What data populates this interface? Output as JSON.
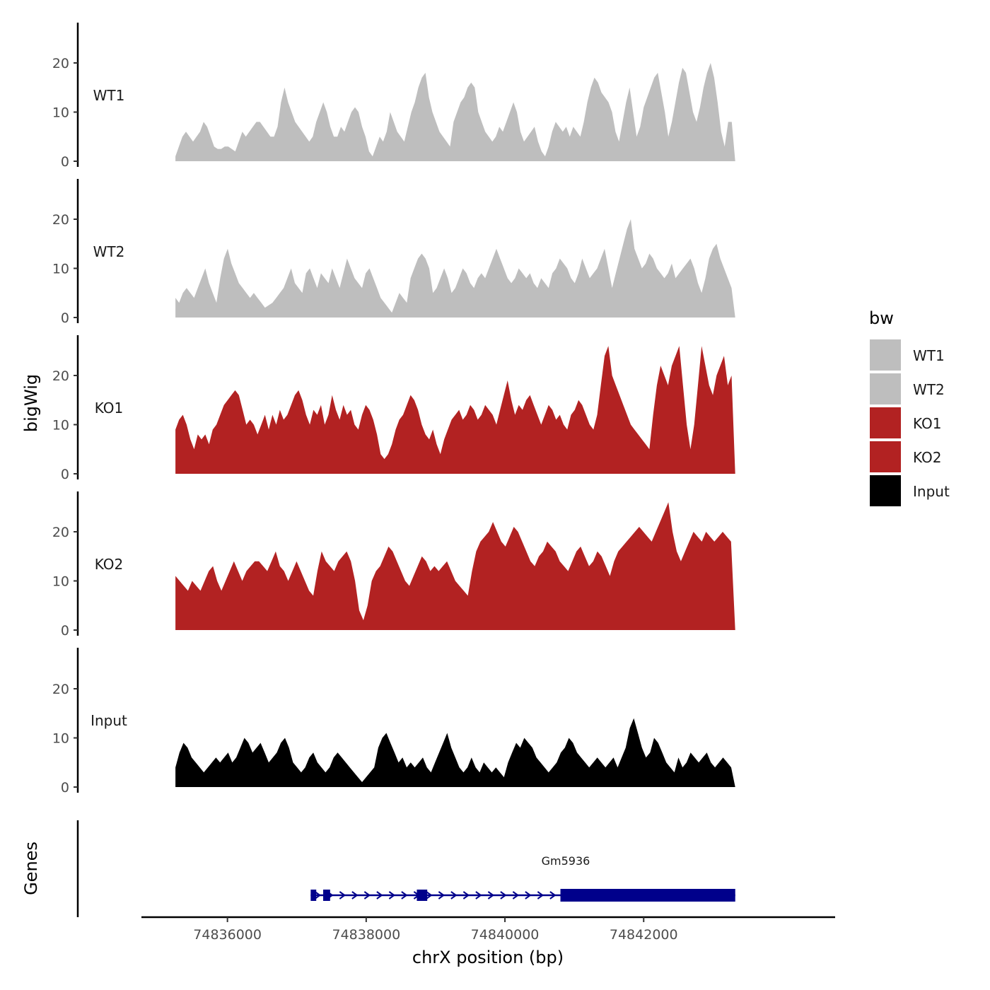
{
  "chart_data": {
    "type": "area",
    "ylabel": "bigWig",
    "genes_label": "Genes",
    "xlabel": "chrX position (bp)",
    "xlim": [
      74834760,
      74844760
    ],
    "data_range": [
      74835250,
      74843320
    ],
    "xticks": [
      74836000,
      74838000,
      74840000,
      74842000
    ],
    "xtick_labels": [
      "74836000",
      "74838000",
      "74840000",
      "74842000"
    ],
    "ylim": [
      0,
      28
    ],
    "yticks": [
      0,
      10,
      20
    ],
    "ytick_labels": [
      "0",
      "10",
      "20"
    ],
    "colors": {
      "WT1": "#bebebe",
      "WT2": "#bebebe",
      "KO1": "#b22222",
      "KO2": "#b22222",
      "Input": "#000000",
      "gene": "#00008b"
    },
    "legend": {
      "title": "bw",
      "entries": [
        "WT1",
        "WT2",
        "KO1",
        "KO2",
        "Input"
      ]
    },
    "tracks": [
      {
        "name": "WT1",
        "profile": [
          1,
          3,
          5,
          6,
          5,
          4,
          5,
          6,
          8,
          7,
          5,
          3,
          2.5,
          2.5,
          3,
          3,
          2.5,
          2,
          4,
          6,
          5,
          6,
          7,
          8,
          8,
          7,
          6,
          5,
          5,
          7,
          12,
          15,
          12,
          10,
          8,
          7,
          6,
          5,
          4,
          5,
          8,
          10,
          12,
          10,
          7,
          5,
          5,
          7,
          6,
          8,
          10,
          11,
          10,
          7,
          5,
          2,
          1,
          3,
          5,
          4,
          6,
          10,
          8,
          6,
          5,
          4,
          7,
          10,
          12,
          15,
          17,
          18,
          13,
          10,
          8,
          6,
          5,
          4,
          3,
          8,
          10,
          12,
          13,
          15,
          16,
          15,
          10,
          8,
          6,
          5,
          4,
          5,
          7,
          6,
          8,
          10,
          12,
          10,
          6,
          4,
          5,
          6,
          7,
          4,
          2,
          1,
          3,
          6,
          8,
          7,
          6,
          7,
          5,
          7,
          6,
          5,
          8,
          12,
          15,
          17,
          16,
          14,
          13,
          12,
          10,
          6,
          4,
          8,
          12,
          15,
          10,
          5,
          7,
          11,
          13,
          15,
          17,
          18,
          14,
          10,
          5,
          8,
          12,
          16,
          19,
          18,
          14,
          10,
          8,
          11,
          15,
          18,
          20,
          17,
          12,
          6,
          3,
          8,
          8,
          0
        ]
      },
      {
        "name": "WT2",
        "profile": [
          4,
          3,
          5,
          6,
          5,
          4,
          6,
          8,
          10,
          7,
          5,
          3,
          8,
          12,
          14,
          11,
          9,
          7,
          6,
          5,
          4,
          5,
          4,
          3,
          2,
          2.5,
          3,
          4,
          5,
          6,
          8,
          10,
          7,
          6,
          5,
          9,
          10,
          8,
          6,
          9,
          8,
          7,
          10,
          8,
          6,
          9,
          12,
          10,
          8,
          7,
          6,
          9,
          10,
          8,
          6,
          4,
          3,
          2,
          1,
          3,
          5,
          4,
          3,
          8,
          10,
          12,
          13,
          12,
          10,
          5,
          6,
          8,
          10,
          8,
          5,
          6,
          8,
          10,
          9,
          7,
          6,
          8,
          9,
          8,
          10,
          12,
          14,
          12,
          10,
          8,
          7,
          8,
          10,
          9,
          8,
          9,
          7,
          6,
          8,
          7,
          6,
          9,
          10,
          12,
          11,
          10,
          8,
          7,
          9,
          12,
          10,
          8,
          9,
          10,
          12,
          14,
          10,
          6,
          9,
          12,
          15,
          18,
          20,
          14,
          12,
          10,
          11,
          13,
          12,
          10,
          9,
          8,
          9,
          11,
          8,
          9,
          10,
          11,
          12,
          10,
          7,
          5,
          8,
          12,
          14,
          15,
          12,
          10,
          8,
          6,
          0
        ]
      },
      {
        "name": "KO1",
        "profile": [
          9,
          11,
          12,
          10,
          7,
          5,
          8,
          7,
          8,
          6,
          9,
          10,
          12,
          14,
          15,
          16,
          17,
          16,
          13,
          10,
          11,
          10,
          8,
          10,
          12,
          9,
          12,
          10,
          13,
          11,
          12,
          14,
          16,
          17,
          15,
          12,
          10,
          13,
          12,
          14,
          10,
          12,
          16,
          13,
          11,
          14,
          12,
          13,
          10,
          9,
          12,
          14,
          13,
          11,
          8,
          4,
          3,
          4,
          6,
          9,
          11,
          12,
          14,
          16,
          15,
          13,
          10,
          8,
          7,
          9,
          6,
          4,
          7,
          9,
          11,
          12,
          13,
          11,
          12,
          14,
          13,
          11,
          12,
          14,
          13,
          12,
          10,
          13,
          16,
          19,
          15,
          12,
          14,
          13,
          15,
          16,
          14,
          12,
          10,
          12,
          14,
          13,
          11,
          12,
          10,
          9,
          12,
          13,
          15,
          14,
          12,
          10,
          9,
          12,
          18,
          24,
          26,
          20,
          18,
          16,
          14,
          12,
          10,
          9,
          8,
          7,
          6,
          5,
          12,
          18,
          22,
          20,
          18,
          22,
          24,
          26,
          18,
          10,
          5,
          10,
          18,
          26,
          22,
          18,
          16,
          20,
          22,
          24,
          18,
          20,
          0
        ]
      },
      {
        "name": "KO2",
        "profile": [
          11,
          10,
          9,
          8,
          10,
          9,
          8,
          10,
          12,
          13,
          10,
          8,
          10,
          12,
          14,
          12,
          10,
          12,
          13,
          14,
          14,
          13,
          12,
          14,
          16,
          13,
          12,
          10,
          12,
          14,
          12,
          10,
          8,
          7,
          12,
          16,
          14,
          13,
          12,
          14,
          15,
          16,
          14,
          10,
          4,
          2,
          5,
          10,
          12,
          13,
          15,
          17,
          16,
          14,
          12,
          10,
          9,
          11,
          13,
          15,
          14,
          12,
          13,
          12,
          13,
          14,
          12,
          10,
          9,
          8,
          7,
          12,
          16,
          18,
          19,
          20,
          22,
          20,
          18,
          17,
          19,
          21,
          20,
          18,
          16,
          14,
          13,
          15,
          16,
          18,
          17,
          16,
          14,
          13,
          12,
          14,
          16,
          17,
          15,
          13,
          14,
          16,
          15,
          13,
          11,
          14,
          16,
          17,
          18,
          19,
          20,
          21,
          20,
          19,
          18,
          20,
          22,
          24,
          26,
          20,
          16,
          14,
          16,
          18,
          20,
          19,
          18,
          20,
          19,
          18,
          19,
          20,
          19,
          18,
          0
        ]
      },
      {
        "name": "Input",
        "profile": [
          4,
          7,
          9,
          8,
          6,
          5,
          4,
          3,
          4,
          5,
          6,
          5,
          6,
          7,
          5,
          6,
          8,
          10,
          9,
          7,
          8,
          9,
          7,
          5,
          6,
          7,
          9,
          10,
          8,
          5,
          4,
          3,
          4,
          6,
          7,
          5,
          4,
          3,
          4,
          6,
          7,
          6,
          5,
          4,
          3,
          2,
          1,
          2,
          3,
          4,
          8,
          10,
          11,
          9,
          7,
          5,
          6,
          4,
          5,
          4,
          5,
          6,
          4,
          3,
          5,
          7,
          9,
          11,
          8,
          6,
          4,
          3,
          4,
          6,
          4,
          3,
          5,
          4,
          3,
          4,
          3,
          2,
          5,
          7,
          9,
          8,
          10,
          9,
          8,
          6,
          5,
          4,
          3,
          4,
          5,
          7,
          8,
          10,
          9,
          7,
          6,
          5,
          4,
          5,
          6,
          5,
          4,
          5,
          6,
          4,
          6,
          8,
          12,
          14,
          11,
          8,
          6,
          7,
          10,
          9,
          7,
          5,
          4,
          3,
          6,
          4,
          5,
          7,
          6,
          5,
          6,
          7,
          5,
          4,
          5,
          6,
          5,
          4,
          0
        ]
      }
    ],
    "gene": {
      "name": "Gm5936",
      "start": 74837200,
      "end": 74843320,
      "strand": "+",
      "exons": [
        [
          74837200,
          74837280
        ],
        [
          74837380,
          74837480
        ],
        [
          74838730,
          74838880
        ],
        [
          74840800,
          74843320
        ]
      ]
    }
  }
}
